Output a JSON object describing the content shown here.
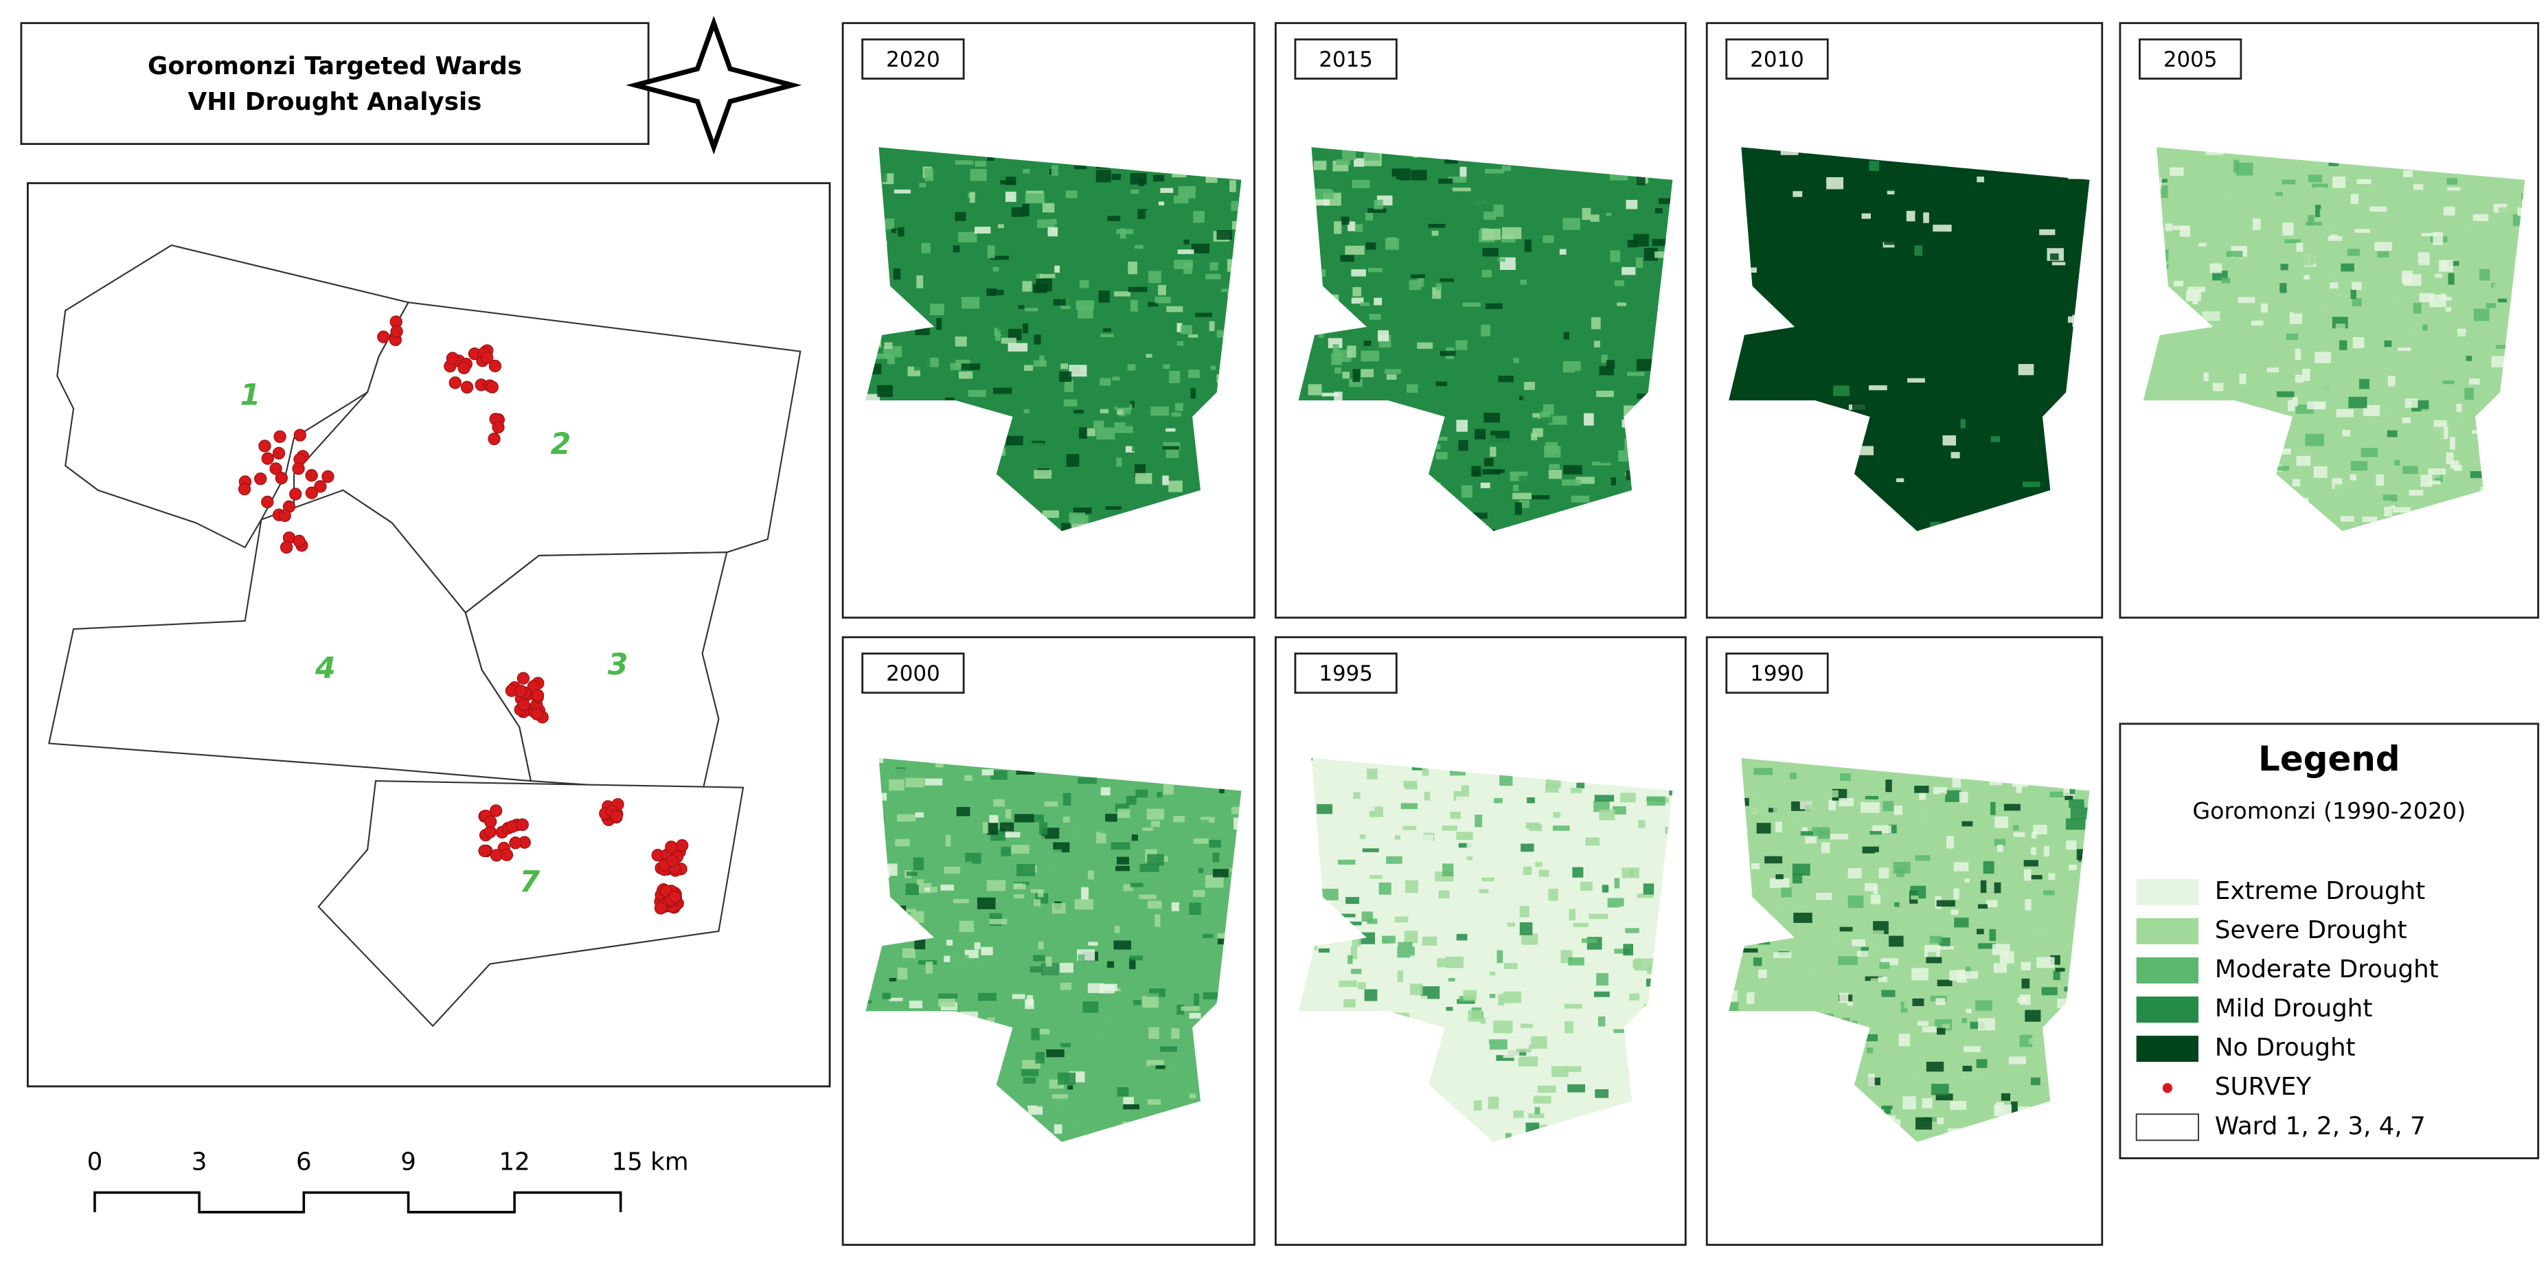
{
  "title": {
    "lines": [
      "Goromonzi Targeted Wards",
      "VHI Drought Analysis"
    ]
  },
  "ward_labels": [
    "1",
    "2",
    "3",
    "4",
    "7"
  ],
  "scale_bar": {
    "labels": [
      "0",
      "3",
      "6",
      "9",
      "12",
      "15 km"
    ]
  },
  "panels": [
    {
      "year": "2020"
    },
    {
      "year": "2015"
    },
    {
      "year": "2010"
    },
    {
      "year": "2005"
    },
    {
      "year": "2000"
    },
    {
      "year": "1995"
    },
    {
      "year": "1990"
    }
  ],
  "legend": {
    "title": "Legend",
    "subtitle": "Goromonzi (1990-2020)",
    "items": [
      {
        "label": "Extreme Drought",
        "color": "#e5f5e0"
      },
      {
        "label": "Severe Drought",
        "color": "#a1d99b"
      },
      {
        "label": "Moderate Drought",
        "color": "#5cb86e"
      },
      {
        "label": "Mild Drought",
        "color": "#238b45"
      },
      {
        "label": "No Drought",
        "color": "#00441b"
      },
      {
        "label": "SURVEY",
        "color": "#d7191c"
      },
      {
        "label": "Ward 1, 2, 3, 4, 7",
        "color": "#ffffff"
      }
    ]
  }
}
